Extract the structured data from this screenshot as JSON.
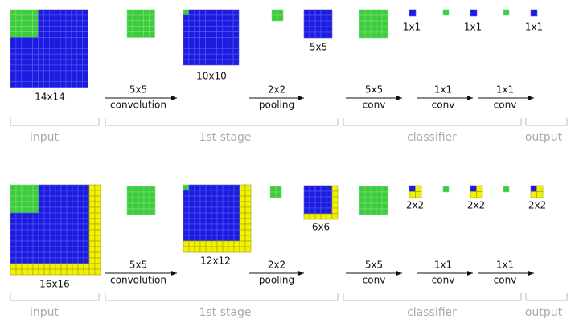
{
  "panels": [
    {
      "input_size": "14x14",
      "feature_sizes": [
        "10x10",
        "5x5"
      ],
      "output_sizes": [
        "1x1",
        "1x1",
        "1x1"
      ],
      "ops": [
        {
          "size": "5x5",
          "name": "convolution"
        },
        {
          "size": "2x2",
          "name": "pooling"
        },
        {
          "size": "5x5",
          "name": "conv"
        },
        {
          "size": "1x1",
          "name": "conv"
        },
        {
          "size": "1x1",
          "name": "conv"
        }
      ],
      "stages": [
        "input",
        "1st stage",
        "classifier",
        "output"
      ]
    },
    {
      "input_size": "16x16",
      "feature_sizes": [
        "12x12",
        "6x6"
      ],
      "output_sizes": [
        "2x2",
        "2x2",
        "2x2"
      ],
      "ops": [
        {
          "size": "5x5",
          "name": "convolution"
        },
        {
          "size": "2x2",
          "name": "pooling"
        },
        {
          "size": "5x5",
          "name": "conv"
        },
        {
          "size": "1x1",
          "name": "conv"
        },
        {
          "size": "1x1",
          "name": "conv"
        }
      ],
      "stages": [
        "input",
        "1st stage",
        "classifier",
        "output"
      ]
    }
  ]
}
